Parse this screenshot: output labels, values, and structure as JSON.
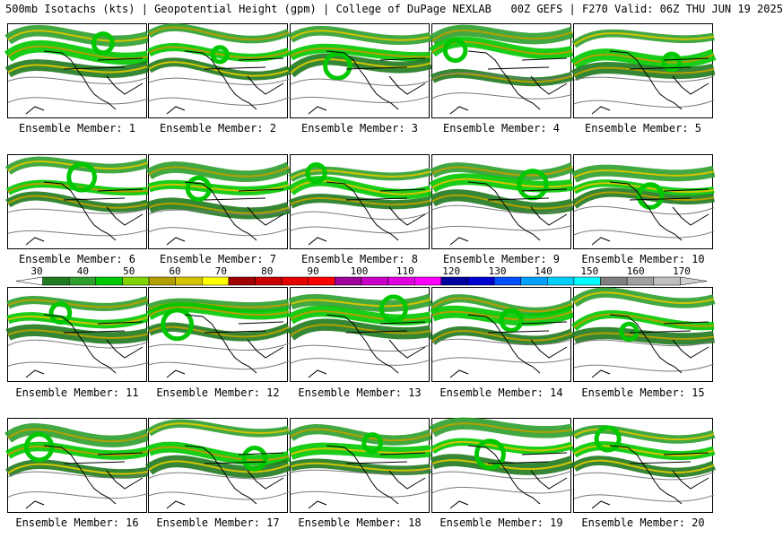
{
  "header": {
    "title": "500mb Isotachs (kts) | Geopotential Height (gpm) | College of DuPage NEXLAB   00Z GEFS | F270 Valid: 06Z THU JUN 19 2025"
  },
  "colorbar": {
    "ticks": [
      "30",
      "40",
      "50",
      "60",
      "70",
      "80",
      "90",
      "100",
      "110",
      "120",
      "130",
      "140",
      "150",
      "160",
      "170"
    ],
    "colors": [
      "#1f7a1f",
      "#2e9e2e",
      "#00c800",
      "#7fd400",
      "#b3a000",
      "#d4c400",
      "#ffff00",
      "#a00000",
      "#c80000",
      "#e60000",
      "#ff0000",
      "#a0009a",
      "#c800c8",
      "#e000e0",
      "#ff00ff",
      "#0000a0",
      "#0000d0",
      "#0050ff",
      "#00a0ff",
      "#00d0ff",
      "#00ffff",
      "#808080",
      "#a0a0a0",
      "#c0c0c0"
    ]
  },
  "members": [
    {
      "label": "Ensemble Member: 1"
    },
    {
      "label": "Ensemble Member: 2"
    },
    {
      "label": "Ensemble Member: 3"
    },
    {
      "label": "Ensemble Member: 4"
    },
    {
      "label": "Ensemble Member: 5"
    },
    {
      "label": "Ensemble Member: 6"
    },
    {
      "label": "Ensemble Member: 7"
    },
    {
      "label": "Ensemble Member: 8"
    },
    {
      "label": "Ensemble Member: 9"
    },
    {
      "label": "Ensemble Member: 10"
    },
    {
      "label": "Ensemble Member: 11"
    },
    {
      "label": "Ensemble Member: 12"
    },
    {
      "label": "Ensemble Member: 13"
    },
    {
      "label": "Ensemble Member: 14"
    },
    {
      "label": "Ensemble Member: 15"
    },
    {
      "label": "Ensemble Member: 16"
    },
    {
      "label": "Ensemble Member: 17"
    },
    {
      "label": "Ensemble Member: 18"
    },
    {
      "label": "Ensemble Member: 19"
    },
    {
      "label": "Ensemble Member: 20"
    }
  ]
}
